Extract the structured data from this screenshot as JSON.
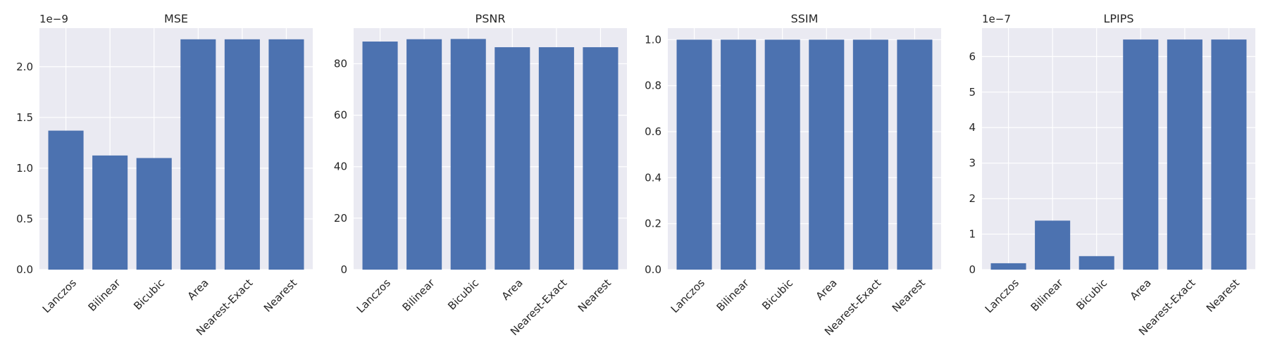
{
  "chart_data": [
    {
      "type": "bar",
      "title": "MSE",
      "categories": [
        "Lanczos",
        "Bilinear",
        "Bicubic",
        "Area",
        "Nearest-Exact",
        "Nearest"
      ],
      "values": [
        1.37e-09,
        1.125e-09,
        1.1e-09,
        2.27e-09,
        2.27e-09,
        2.27e-09
      ],
      "ylim": [
        0,
        2.38e-09
      ],
      "yticks": [
        0,
        5e-10,
        1e-09,
        1.5e-09,
        2e-09
      ],
      "ytick_labels": [
        "0.0",
        "0.5",
        "1.0",
        "1.5",
        "2.0"
      ],
      "offset_label": "1e−9",
      "color": "#4C72B0",
      "grid": true
    },
    {
      "type": "bar",
      "title": "PSNR",
      "categories": [
        "Lanczos",
        "Bilinear",
        "Bicubic",
        "Area",
        "Nearest-Exact",
        "Nearest"
      ],
      "values": [
        88.6,
        89.5,
        89.6,
        86.4,
        86.4,
        86.4
      ],
      "ylim": [
        0,
        93.8
      ],
      "yticks": [
        0,
        20,
        40,
        60,
        80
      ],
      "ytick_labels": [
        "0",
        "20",
        "40",
        "60",
        "80"
      ],
      "offset_label": "",
      "color": "#4C72B0",
      "grid": true
    },
    {
      "type": "bar",
      "title": "SSIM",
      "categories": [
        "Lanczos",
        "Bilinear",
        "Bicubic",
        "Area",
        "Nearest-Exact",
        "Nearest"
      ],
      "values": [
        1.0,
        1.0,
        1.0,
        1.0,
        1.0,
        1.0
      ],
      "ylim": [
        0,
        1.05
      ],
      "yticks": [
        0,
        0.2,
        0.4,
        0.6,
        0.8,
        1.0
      ],
      "ytick_labels": [
        "0.0",
        "0.2",
        "0.4",
        "0.6",
        "0.8",
        "1.0"
      ],
      "offset_label": "",
      "color": "#4C72B0",
      "grid": true
    },
    {
      "type": "bar",
      "title": "LPIPS",
      "categories": [
        "Lanczos",
        "Bilinear",
        "Bicubic",
        "Area",
        "Nearest-Exact",
        "Nearest"
      ],
      "values": [
        1.8e-08,
        1.38e-07,
        3.8e-08,
        6.48e-07,
        6.48e-07,
        6.48e-07
      ],
      "ylim": [
        0,
        6.8e-07
      ],
      "yticks": [
        0,
        1e-07,
        2e-07,
        3e-07,
        4e-07,
        5e-07,
        6e-07
      ],
      "ytick_labels": [
        "0",
        "1",
        "2",
        "3",
        "4",
        "5",
        "6"
      ],
      "offset_label": "1e−7",
      "color": "#4C72B0",
      "grid": true
    }
  ]
}
